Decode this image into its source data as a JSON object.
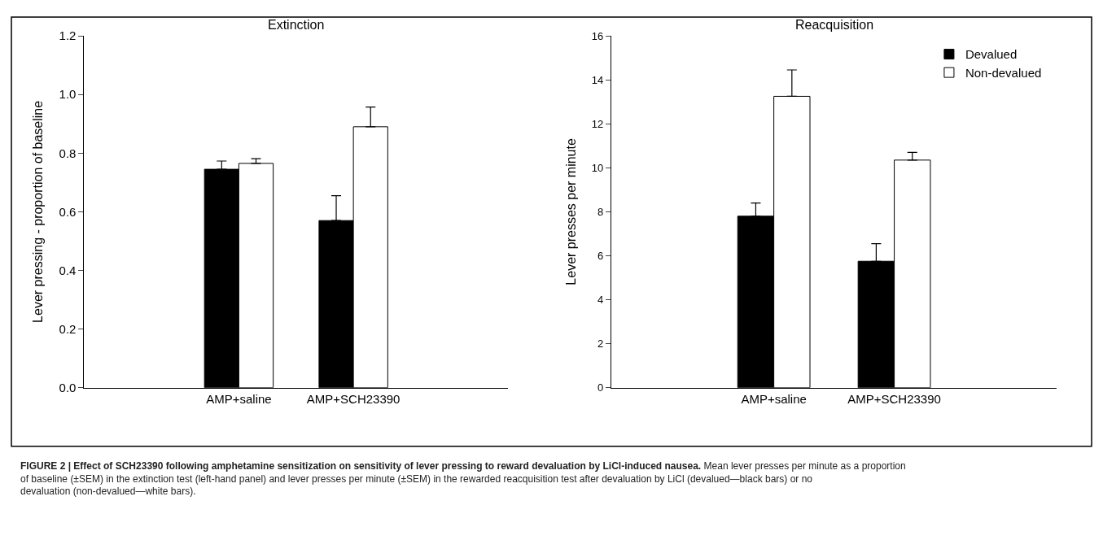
{
  "chart_data": [
    {
      "type": "bar",
      "title": "Extinction",
      "ylabel": "Lever pressing - proportion of baseline",
      "categories": [
        "AMP+saline",
        "AMP+SCH23390"
      ],
      "series": [
        {
          "color": "#000000",
          "values": [
            0.745,
            0.57
          ],
          "errors": [
            [
              0.745,
              0.773
            ],
            [
              0.57,
              0.655
            ]
          ]
        },
        {
          "color": "#ffffff",
          "values": [
            0.765,
            0.89
          ],
          "errors": [
            [
              0.765,
              0.781
            ],
            [
              0.89,
              0.957
            ]
          ]
        }
      ],
      "ylim": [
        0,
        1.2
      ],
      "yticks": [
        {
          "value": 0,
          "label": "0.0"
        },
        0.2,
        0.4,
        0.6,
        0.8,
        {
          "value": 1,
          "label": "1.0"
        },
        1.2
      ],
      "legend": false,
      "annotations": [
        "FIGURE 2 | Effect of SCH23390 following amphetamine sensitization on sensitivity of lever pressing to reward devaluation by LiCl-induced nausea.",
        "Mean lever presses per minute as a proportion of baseline (±SEM) in the extinction test (left-hand panel) and lever presses per minute (±SEM) in the rewarded reacquisition test after devaluation by LiCl (devalued—black bars) or no devaluation (non-devalued—white bars)."
      ]
    },
    {
      "type": "bar",
      "title": "Reacquisition",
      "ylabel": "Lever presses per minute",
      "categories": [
        "AMP+saline",
        "AMP+SCH23390"
      ],
      "series": [
        {
          "name": "Devalued",
          "color": "#000000",
          "values": [
            7.8,
            5.75
          ],
          "errors": [
            [
              7.8,
              8.4
            ],
            [
              5.75,
              6.55
            ]
          ]
        },
        {
          "name": "Non-devalued",
          "color": "#ffffff",
          "values": [
            13.25,
            10.35
          ],
          "errors": [
            [
              13.25,
              14.45
            ],
            [
              10.35,
              10.7
            ]
          ]
        }
      ],
      "ylim": [
        0,
        16
      ],
      "yticks": [
        0,
        2,
        4,
        6,
        8,
        10,
        12,
        14,
        16
      ],
      "legend": "top right"
    }
  ]
}
